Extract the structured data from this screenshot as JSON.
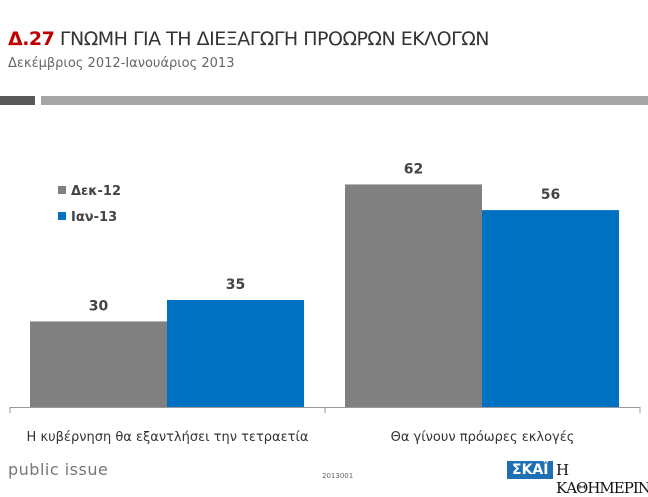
{
  "header": {
    "code": "Δ.27",
    "title": "ΓΝΩΜΗ ΓΙΑ ΤΗ ΔΙΕΞΑΓΩΓΗ ΠΡΟΩΡΩΝ ΕΚΛΟΓΩΝ",
    "subtitle": "Δεκέμβριος 2012-Ιανουάριος 2013"
  },
  "chart_data": {
    "type": "bar",
    "title": "ΓΝΩΜΗ ΓΙΑ ΤΗ ΔΙΕΞΑΓΩΓΗ ΠΡΟΩΡΩΝ ΕΚΛΟΓΩΝ",
    "categories": [
      "Η κυβέρνηση θα εξαντλήσει την τετραετία",
      "Θα γίνουν πρόωρες εκλογές"
    ],
    "series": [
      {
        "name": "Δεκ-12",
        "color": "#808080",
        "values": [
          30,
          62
        ]
      },
      {
        "name": "Ιαν-13",
        "color": "#0070c0",
        "values": [
          35,
          56
        ]
      }
    ],
    "ylim": [
      10,
      70
    ],
    "legend": "top-left",
    "grid": false,
    "xlabel": "",
    "ylabel": ""
  },
  "footer": {
    "brand": "public issue",
    "code": "2013001",
    "logo1": "ΣΚΑΪ",
    "logo2": "Η ΚΑΘΗΜΕΡΙΝΗ"
  }
}
